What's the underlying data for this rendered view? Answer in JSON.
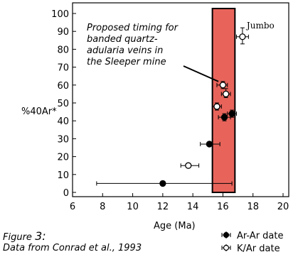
{
  "chart_data": {
    "type": "scatter",
    "xlabel": "Age (Ma)",
    "ylabel": "%40Ar*",
    "xlim": [
      6,
      20
    ],
    "ylim": [
      0,
      100
    ],
    "xticks": [
      "6",
      "8",
      "10",
      "12",
      "14",
      "16",
      "18",
      "20"
    ],
    "yticks": [
      "0",
      "10",
      "20",
      "30",
      "40",
      "50",
      "60",
      "70",
      "80",
      "90",
      "100"
    ],
    "series": [
      {
        "name": "Ar-Ar date",
        "marker": "filled-circle",
        "points": [
          {
            "x": 12.0,
            "y": 5,
            "xerr": [
              7.6,
              16.6
            ]
          },
          {
            "x": 15.1,
            "y": 27,
            "xerr": [
              14.5,
              15.8
            ]
          },
          {
            "x": 16.1,
            "y": 42,
            "xerr": [
              15.7,
              16.5
            ],
            "yerr": [
              40,
              44
            ]
          },
          {
            "x": 16.6,
            "y": 44,
            "xerr": [
              16.3,
              16.9
            ],
            "yerr": [
              42,
              46
            ]
          }
        ]
      },
      {
        "name": "K/Ar date",
        "marker": "open-circle",
        "points": [
          {
            "x": 13.7,
            "y": 15,
            "xerr": [
              13.2,
              14.4
            ]
          },
          {
            "x": 15.6,
            "y": 48,
            "xerr": [
              15.3,
              15.9
            ],
            "yerr": [
              46,
              50
            ]
          },
          {
            "x": 16.2,
            "y": 55,
            "xerr": [
              15.9,
              16.5
            ],
            "yerr": [
              53,
              58
            ]
          },
          {
            "x": 16.0,
            "y": 60,
            "xerr": [
              15.6,
              16.3
            ],
            "yerr": [
              58,
              62
            ]
          },
          {
            "x": 17.3,
            "y": 87,
            "xerr": [
              16.9,
              17.7
            ],
            "yerr": [
              83,
              92
            ],
            "label": "Jumbo"
          }
        ]
      }
    ],
    "highlight_band": {
      "x_range": [
        15.3,
        16.8
      ],
      "color": "#e8645b"
    },
    "annotation": {
      "lines": [
        "Proposed timing for",
        "banded quartz-",
        "adularia veins in",
        "the Sleeper mine"
      ],
      "arrow_target": {
        "x": 15.7,
        "y": 62
      }
    },
    "grid": false,
    "legend_position": "bottom-right"
  },
  "caption": {
    "figure_prefix": "Figure ",
    "figure_number": "3:",
    "source": "Data from Conrad et al., 1993"
  },
  "colors": {
    "band": "#e8645b",
    "marker": "#000000"
  }
}
